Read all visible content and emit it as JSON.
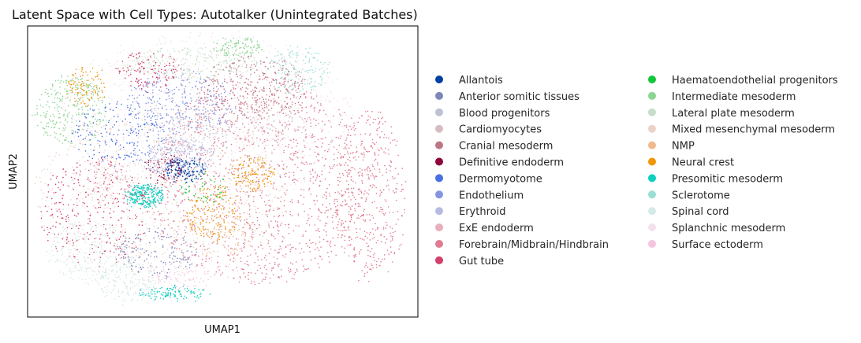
{
  "chart_data": {
    "type": "scatter",
    "title": "Latent Space with Cell Types: Autotalker (Unintegrated Batches)",
    "xlabel": "UMAP1",
    "ylabel": "UMAP2",
    "ticks": "none",
    "grid": false,
    "legend_position": "right",
    "legend_columns": 2,
    "series": [
      {
        "name": "Allantois",
        "color": "#023fa5"
      },
      {
        "name": "Anterior somitic tissues",
        "color": "#7d87b9"
      },
      {
        "name": "Blood progenitors",
        "color": "#bec1d4"
      },
      {
        "name": "Cardiomyocytes",
        "color": "#d6bcc0"
      },
      {
        "name": "Cranial mesoderm",
        "color": "#bb7784"
      },
      {
        "name": "Definitive endoderm",
        "color": "#8e063b"
      },
      {
        "name": "Dermomyotome",
        "color": "#4a6fe3"
      },
      {
        "name": "Endothelium",
        "color": "#8595e1"
      },
      {
        "name": "Erythroid",
        "color": "#b5bbe3"
      },
      {
        "name": "ExE endoderm",
        "color": "#e6afb9"
      },
      {
        "name": "Forebrain/Midbrain/Hindbrain",
        "color": "#e07b91"
      },
      {
        "name": "Gut tube",
        "color": "#d33f6a"
      },
      {
        "name": "Haematoendothelial progenitors",
        "color": "#11c638"
      },
      {
        "name": "Intermediate mesoderm",
        "color": "#8dd593"
      },
      {
        "name": "Lateral plate mesoderm",
        "color": "#c6dec7"
      },
      {
        "name": "Mixed mesenchymal mesoderm",
        "color": "#ead3c6"
      },
      {
        "name": "NMP",
        "color": "#f0b98d"
      },
      {
        "name": "Neural crest",
        "color": "#ef9708"
      },
      {
        "name": "Presomitic mesoderm",
        "color": "#0fcfc0"
      },
      {
        "name": "Sclerotome",
        "color": "#9cded6"
      },
      {
        "name": "Spinal cord",
        "color": "#d5eae7"
      },
      {
        "name": "Splanchnic mesoderm",
        "color": "#f3e1eb"
      },
      {
        "name": "Surface ectoderm",
        "color": "#f6c4e1"
      }
    ]
  }
}
